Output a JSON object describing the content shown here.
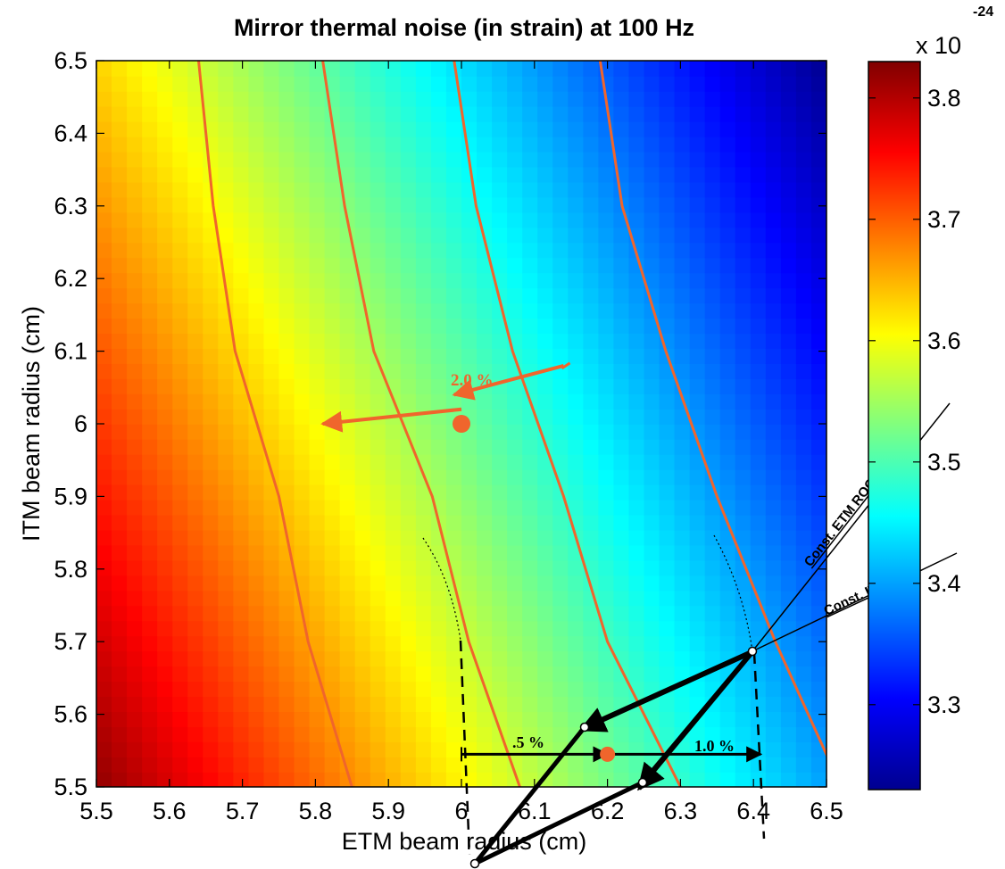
{
  "chart_data": {
    "type": "heatmap",
    "title": "Mirror thermal noise (in strain) at 100 Hz",
    "xlabel": "ETM beam radius (cm)",
    "ylabel": "ITM beam radius (cm)",
    "xlim": [
      5.5,
      6.5
    ],
    "ylim": [
      5.5,
      6.5
    ],
    "xticks": [
      "5.5",
      "5.6",
      "5.7",
      "5.8",
      "5.9",
      "6",
      "6.1",
      "6.2",
      "6.3",
      "6.4",
      "6.5"
    ],
    "yticks": [
      "5.5",
      "5.6",
      "5.7",
      "5.8",
      "5.9",
      "6",
      "6.1",
      "6.2",
      "6.3",
      "6.4",
      "6.5"
    ],
    "grid": false,
    "colormap": "jet",
    "colorbar": {
      "range": [
        3.23,
        3.83
      ],
      "ticks": [
        "3.3",
        "3.4",
        "3.5",
        "3.6",
        "3.7",
        "3.8"
      ],
      "multiplier": "x 10",
      "exponent": "-24"
    },
    "surface": {
      "corner_values": {
        "x5.5_y5.5": 3.82,
        "x6.5_y6.5": 3.24,
        "x5.5_y6.5": 3.63,
        "x6.5_y5.5": 3.4
      }
    },
    "contours": [
      {
        "points": [
          [
            5.64,
            6.5
          ],
          [
            5.66,
            6.3
          ],
          [
            5.69,
            6.1
          ],
          [
            5.75,
            5.9
          ],
          [
            5.79,
            5.7
          ],
          [
            5.85,
            5.5
          ]
        ]
      },
      {
        "points": [
          [
            5.81,
            6.5
          ],
          [
            5.84,
            6.3
          ],
          [
            5.88,
            6.1
          ],
          [
            5.96,
            5.9
          ],
          [
            6.01,
            5.7
          ],
          [
            6.08,
            5.5
          ]
        ]
      },
      {
        "points": [
          [
            5.99,
            6.5
          ],
          [
            6.02,
            6.3
          ],
          [
            6.07,
            6.1
          ],
          [
            6.14,
            5.9
          ],
          [
            6.2,
            5.7
          ],
          [
            6.3,
            5.5
          ]
        ]
      },
      {
        "points": [
          [
            6.19,
            6.5
          ],
          [
            6.22,
            6.3
          ],
          [
            6.28,
            6.1
          ],
          [
            6.35,
            5.9
          ],
          [
            6.43,
            5.7
          ],
          [
            6.52,
            5.5
          ]
        ]
      }
    ],
    "markers": [
      {
        "x": 6.0,
        "y": 6.0,
        "color": "#f0652c"
      },
      {
        "x": 6.2,
        "y": 5.545,
        "color": "#f0652c"
      }
    ],
    "annotations": [
      {
        "text": "2.0 %",
        "x": 5.98,
        "y": 6.065,
        "color": "#f0652c"
      },
      {
        "text": ".5 %",
        "x": 6.07,
        "y": 5.56,
        "color": "#000000"
      },
      {
        "text": "1.0 %",
        "x": 6.32,
        "y": 5.56,
        "color": "#000000"
      },
      {
        "text": "Const. ETM ROC",
        "color": "#000000"
      },
      {
        "text": "Const. ITM ROC",
        "color": "#000000"
      }
    ],
    "arrows": [
      {
        "from": [
          6.14,
          6.08
        ],
        "to": [
          5.99,
          6.04
        ],
        "color": "#f0652c"
      },
      {
        "from": [
          6.0,
          6.02
        ],
        "to": [
          5.81,
          6.0
        ],
        "color": "#f0652c"
      },
      {
        "from": [
          6.0,
          5.545
        ],
        "to": [
          6.2,
          5.545
        ],
        "color": "#000000"
      },
      {
        "from": [
          6.2,
          5.545
        ],
        "to": [
          6.41,
          5.545
        ],
        "color": "#000000"
      }
    ]
  }
}
